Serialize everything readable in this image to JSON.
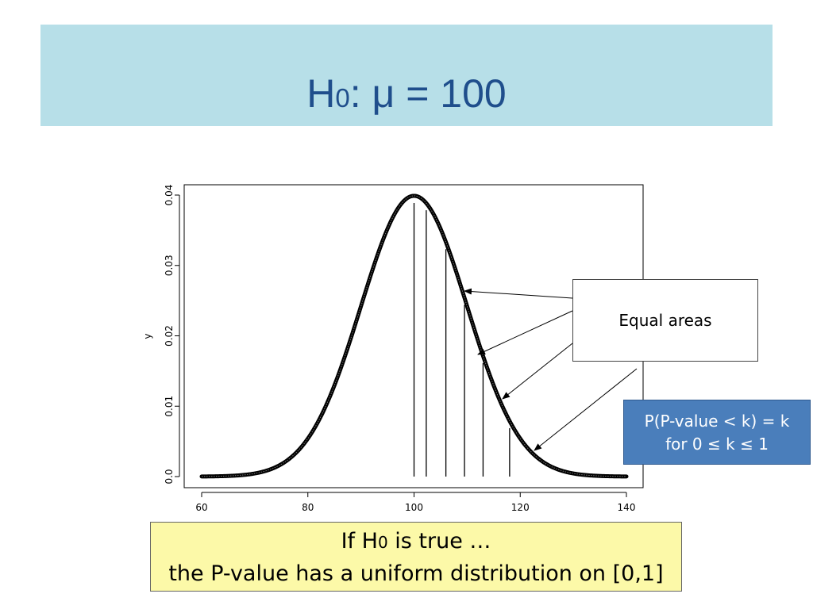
{
  "slide": {
    "title_h": "H",
    "title_sub": "0",
    "title_rest": ": μ = 100",
    "callout_text": "Equal areas",
    "pbox_line1": "P(P-value < k) = k",
    "pbox_line2": "for 0 ≤ k ≤ 1",
    "note_line1_h": "If H",
    "note_line1_sub": "0",
    "note_line1_rest": " is true …",
    "note_line2": "the P-value has a uniform distribution on [0,1]",
    "colors": {
      "title_bg": "#b7dfe8",
      "title_text": "#1f4e8c",
      "pbox_bg": "#4a7ebb",
      "note_bg": "#fcf9a8"
    }
  },
  "chart_data": {
    "type": "line",
    "title": "",
    "xlabel": "",
    "ylabel": "y",
    "distribution": {
      "name": "normal",
      "mean": 100,
      "sd": 10
    },
    "xlim": [
      60,
      140
    ],
    "ylim": [
      0,
      0.04
    ],
    "x_ticks": [
      60,
      80,
      100,
      120,
      140
    ],
    "x_tick_labels": [
      "60",
      "80",
      "100",
      "120",
      "140"
    ],
    "y_ticks": [
      0,
      0.01,
      0.02,
      0.03,
      0.04
    ],
    "y_tick_labels": [
      "0.0",
      "0.01",
      "0.02",
      "0.03",
      "0.04"
    ],
    "vertical_lines_x": [
      100,
      102.3,
      106,
      109.5,
      113,
      118
    ],
    "annotation": "Equal areas",
    "grid": false
  }
}
